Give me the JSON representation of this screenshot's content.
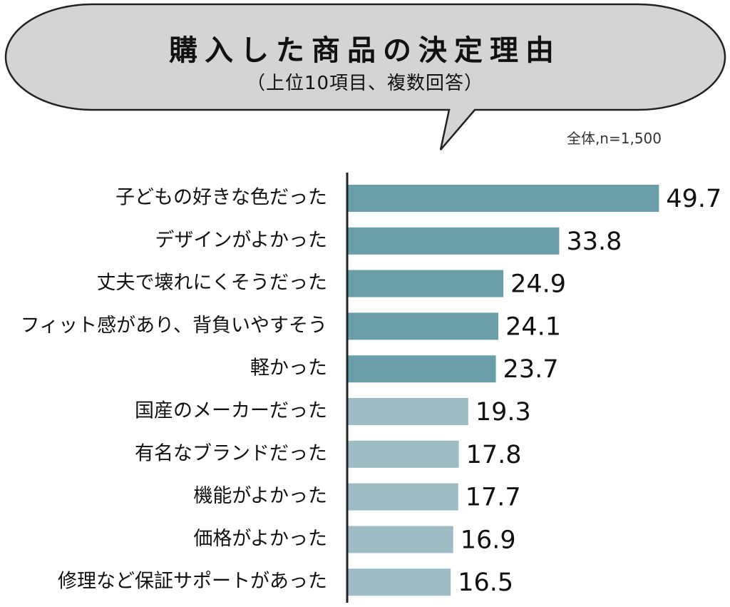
{
  "chart_data": {
    "type": "bar",
    "orientation": "horizontal",
    "title": "購入した商品の決定理由",
    "subtitle": "（上位10項目、複数回答）",
    "note": "全体,n=1,500",
    "categories": [
      "子どもの好きな色だった",
      "デザインがよかった",
      "丈夫で壊れにくそうだった",
      "フィット感があり、背負いやすそう",
      "軽かった",
      "国産のメーカーだった",
      "有名なブランドだった",
      "機能がよかった",
      "価格がよかった",
      "修理など保証サポートがあった"
    ],
    "values": [
      49.7,
      33.8,
      24.9,
      24.1,
      23.7,
      19.3,
      17.8,
      17.7,
      16.9,
      16.5
    ],
    "value_labels": [
      "49.7",
      "33.8",
      "24.9",
      "24.1",
      "23.7",
      "19.3",
      "17.8",
      "17.7",
      "16.9",
      "16.5"
    ],
    "xlim": [
      0,
      50
    ],
    "grid": false,
    "legend": "none",
    "colors": {
      "top5": "#6a9fa9",
      "rest": "#9dbcc3",
      "bubble_fill": "#d4d4d4",
      "bubble_stroke": "#222222"
    }
  }
}
